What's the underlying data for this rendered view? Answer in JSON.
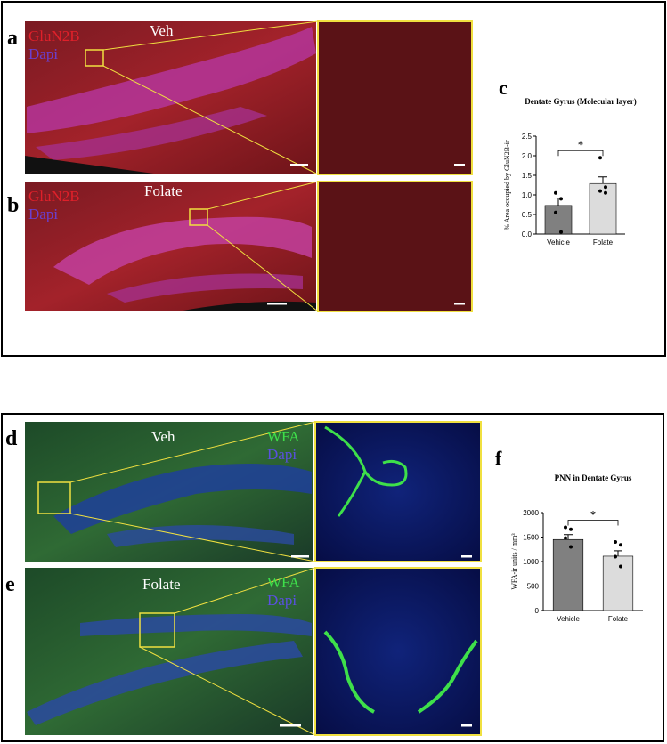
{
  "images": [
    {
      "letter": "a",
      "stains": [
        "GluN2B",
        "Dapi"
      ],
      "condition": "Veh"
    },
    {
      "letter": "b",
      "stains": [
        "GluN2B",
        "Dapi"
      ],
      "condition": "Folate"
    },
    {
      "letter": "d",
      "stains": [
        "WFA",
        "Dapi"
      ],
      "condition": "Veh"
    },
    {
      "letter": "e",
      "stains": [
        "WFA",
        "Dapi"
      ],
      "condition": "Folate"
    }
  ],
  "chart_data": [
    {
      "type": "bar",
      "letter": "c",
      "title": "Dentate Gyrus (Molecular layer)",
      "y_label": "% Area occupied by GluN2B-ir",
      "categories": [
        "Vehicle",
        "Folate"
      ],
      "values": [
        0.73,
        1.29
      ],
      "errors": [
        0.19,
        0.17
      ],
      "points": [
        [
          1.05,
          0.9,
          0.55,
          0.05
        ],
        [
          1.95,
          1.2,
          1.1,
          1.05
        ]
      ],
      "colors": [
        "#808080",
        "#dcdcdc"
      ],
      "significance": "*",
      "ylim": [
        0,
        2.5
      ],
      "yticks": [
        {
          "value": 0,
          "label": "0.0"
        },
        0.5,
        {
          "value": 1,
          "label": "1.0"
        },
        1.5,
        {
          "value": 2,
          "label": "2.0"
        },
        2.5
      ]
    },
    {
      "type": "bar",
      "letter": "f",
      "title": "PNN in Dentate Gyrus",
      "y_label": "WFA-ir units / mm³",
      "categories": [
        "Vehicle",
        "Folate"
      ],
      "values": [
        1450,
        1110
      ],
      "errors": [
        100,
        110
      ],
      "points": [
        [
          1700,
          1660,
          1480,
          1300
        ],
        [
          1400,
          1340,
          1100,
          900
        ]
      ],
      "colors": [
        "#808080",
        "#dcdcdc"
      ],
      "significance": "*",
      "ylim": [
        0,
        2000
      ],
      "yticks": [
        0,
        500,
        1000,
        1500,
        2000
      ]
    }
  ]
}
